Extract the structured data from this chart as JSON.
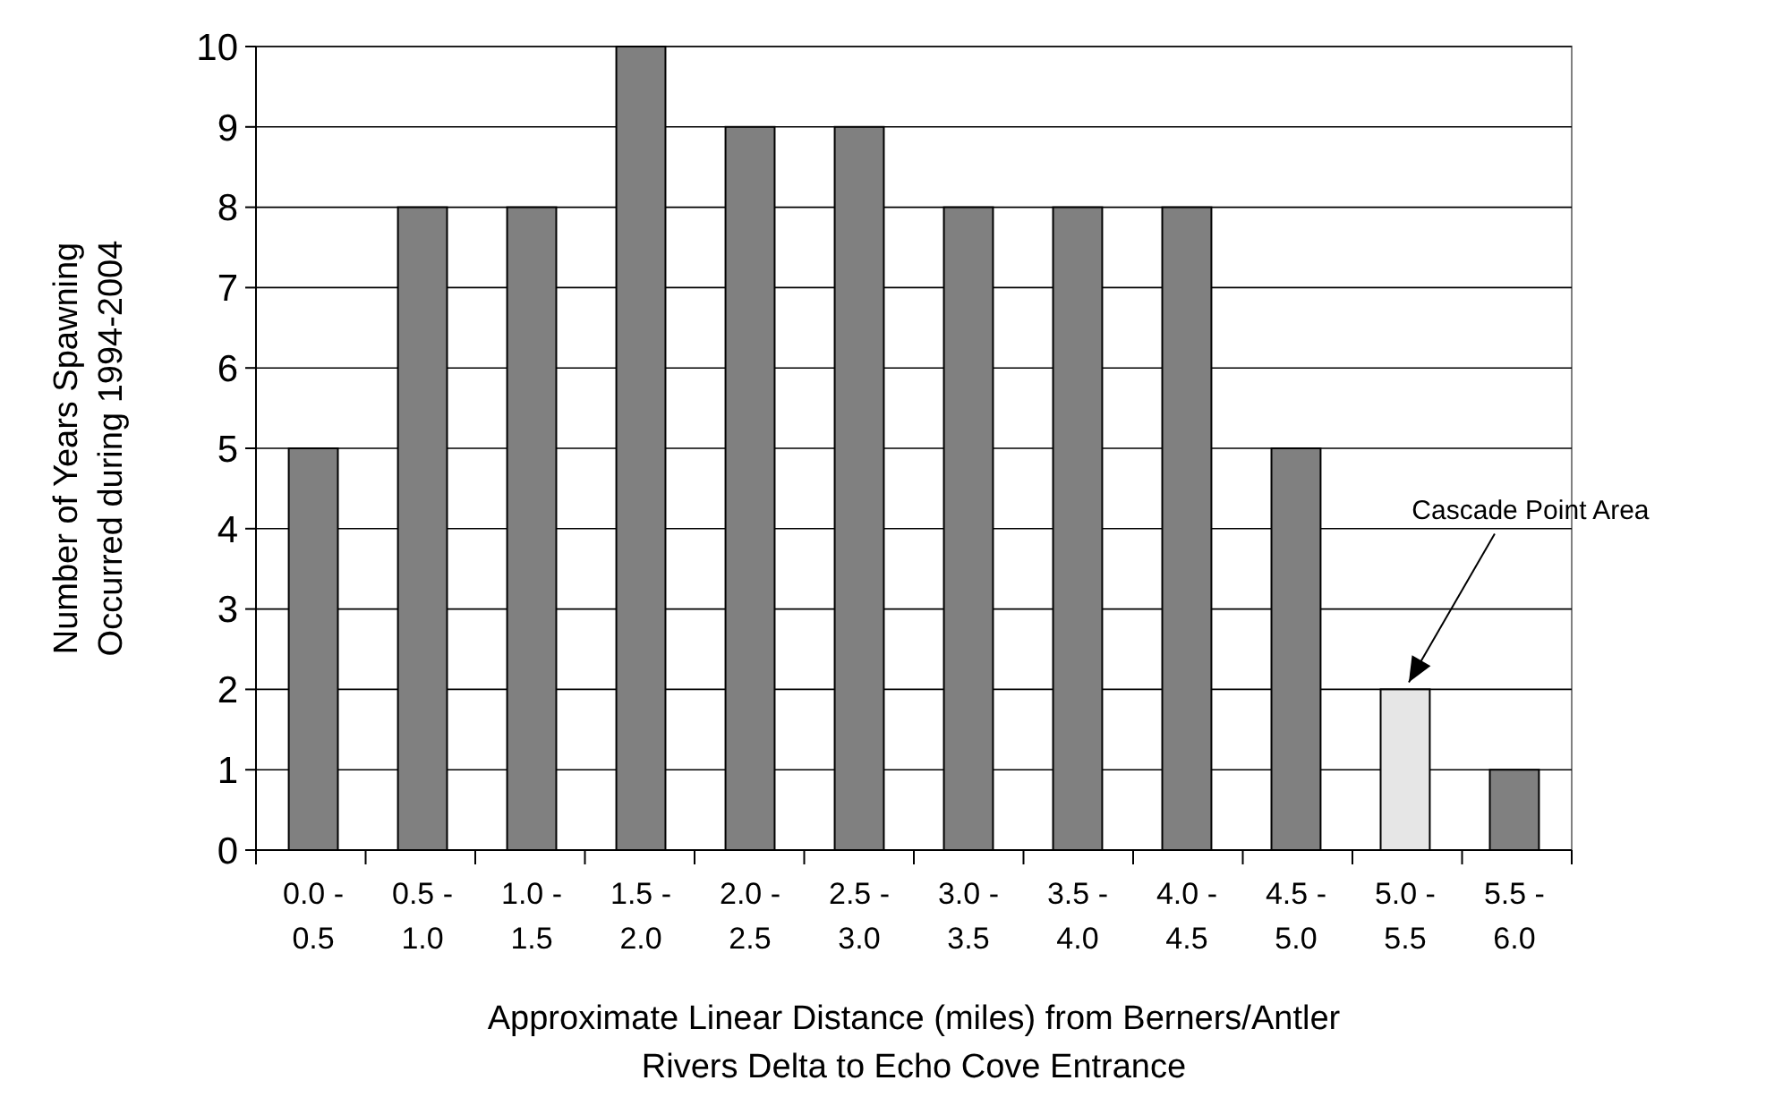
{
  "chart_data": {
    "type": "bar",
    "xlabel": "Approximate Linear Distance (miles) from Berners/Antler Rivers Delta to Echo Cove Entrance",
    "ylabel": "Number of Years Spawning Occurred during 1994-2004",
    "categories": [
      "0.0 - 0.5",
      "0.5 - 1.0",
      "1.0 - 1.5",
      "1.5 - 2.0",
      "2.0 - 2.5",
      "2.5 - 3.0",
      "3.0 - 3.5",
      "3.5 - 4.0",
      "4.0 - 4.5",
      "4.5 - 5.0",
      "5.0 - 5.5",
      "5.5 - 6.0"
    ],
    "values": [
      5,
      8,
      8,
      10,
      9,
      9,
      8,
      8,
      8,
      5,
      2,
      1
    ],
    "colors": [
      "#808080",
      "#808080",
      "#808080",
      "#808080",
      "#808080",
      "#808080",
      "#808080",
      "#808080",
      "#808080",
      "#808080",
      "#e6e6e6",
      "#808080"
    ],
    "ylim": [
      0,
      10
    ],
    "yticks": [
      0,
      1,
      2,
      3,
      4,
      5,
      6,
      7,
      8,
      9,
      10
    ],
    "grid": "y",
    "annotations": [
      {
        "text": "Cascade Point Area",
        "x": "5.0 - 5.5",
        "y": 2
      }
    ]
  }
}
